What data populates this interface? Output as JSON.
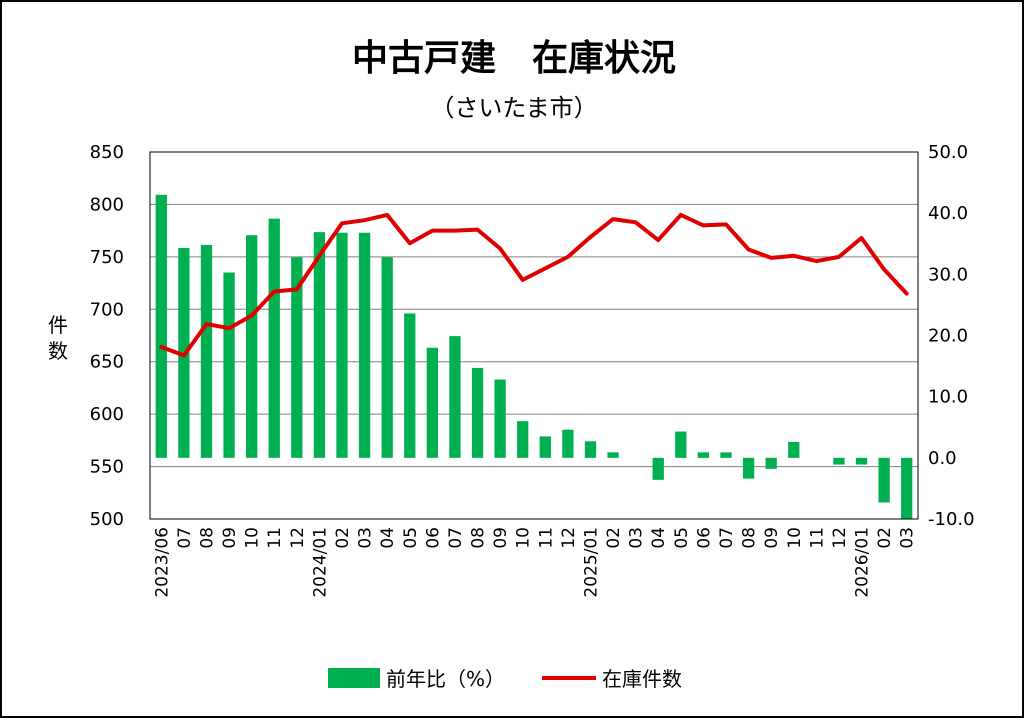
{
  "chart_data": {
    "type": "bar+line",
    "title": "中古戸建　在庫状況",
    "subtitle": "（さいたま市）",
    "ylabel_left": "件数",
    "y_left_range": [
      500,
      850
    ],
    "y_left_ticks": [
      "850",
      "800",
      "750",
      "700",
      "650",
      "600",
      "550",
      "500"
    ],
    "y_right_range": [
      -10,
      50
    ],
    "y_right_ticks": [
      "50.0",
      "40.0",
      "30.0",
      "20.0",
      "10.0",
      "0.0",
      "-10.0"
    ],
    "y_right_negative_color": "#e00000",
    "grid": true,
    "legend_position": "bottom",
    "categories": [
      "2023/06",
      "07",
      "08",
      "09",
      "10",
      "11",
      "12",
      "2024/01",
      "02",
      "03",
      "04",
      "05",
      "06",
      "07",
      "08",
      "09",
      "10",
      "11",
      "12",
      "2025/01",
      "02",
      "03",
      "04",
      "05",
      "06",
      "07",
      "08",
      "09",
      "10",
      "11",
      "12",
      "2026/01",
      "02",
      "03"
    ],
    "series": [
      {
        "name": "前年比（%）",
        "type": "bar",
        "axis": "right",
        "color": "#00b050",
        "values": [
          43.0,
          34.3,
          34.8,
          30.3,
          36.4,
          39.1,
          32.8,
          36.9,
          36.8,
          36.8,
          32.8,
          23.6,
          18.0,
          19.9,
          14.7,
          12.8,
          6.0,
          3.5,
          4.6,
          2.7,
          0.9,
          0.0,
          -3.6,
          4.3,
          0.9,
          0.9,
          -3.4,
          -1.8,
          2.6,
          0.0,
          -1.1,
          -1.1,
          -7.3,
          -10.0
        ]
      },
      {
        "name": "在庫件数",
        "type": "line",
        "axis": "left",
        "color": "#e00000",
        "values": [
          664,
          656,
          686,
          682,
          694,
          717,
          719,
          751,
          782,
          785,
          790,
          763,
          775,
          775,
          776,
          758,
          728,
          739,
          750,
          769,
          786,
          783,
          766,
          790,
          780,
          781,
          757,
          749,
          751,
          746,
          750,
          768,
          738,
          715
        ]
      }
    ]
  }
}
